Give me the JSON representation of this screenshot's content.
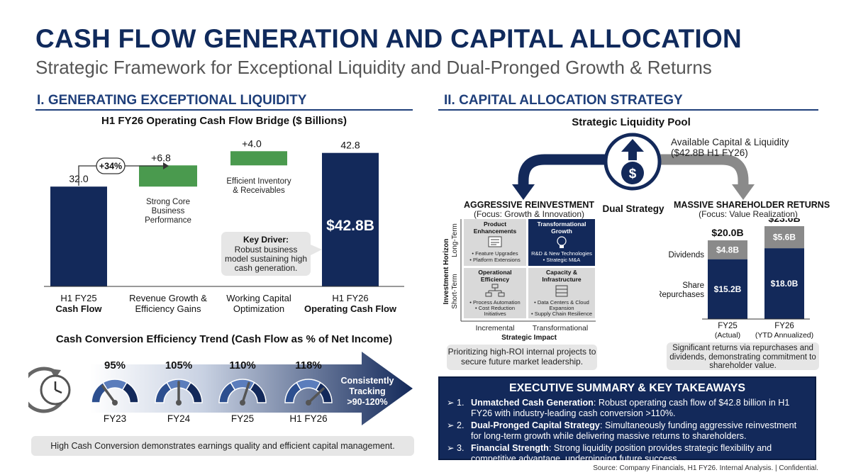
{
  "title": "CASH FLOW GENERATION AND CAPITAL ALLOCATION",
  "subtitle": "Strategic Framework for Exceptional Liquidity and Dual-Pronged Growth & Returns",
  "section1": {
    "heading": "I. GENERATING EXCEPTIONAL LIQUIDITY",
    "bridge_title": "H1 FY26 Operating Cash Flow Bridge ($ Billions)",
    "growth_badge": "+34%",
    "bar_descriptions": [
      "Strong Core Business Performance",
      "Efficient Inventory & Receivables"
    ],
    "highlight_value": "$42.8B",
    "key_driver_title": "Key Driver:",
    "key_driver_text": "Robust business model sustaining high cash generation.",
    "trend_title": "Cash Conversion Efficiency Trend (Cash Flow as % of Net Income)",
    "trend_arrow_text": "Consistently Tracking >90-120%",
    "trend_note": "High Cash Conversion demonstrates earnings quality and efficient capital management."
  },
  "section2": {
    "heading": "II. CAPITAL ALLOCATION STRATEGY",
    "pool_title": "Strategic Liquidity Pool",
    "available_capital": "Available Capital & Liquidity ($42.8B H1 FY26)",
    "dual_strategy": "Dual Strategy",
    "reinvest_title": "AGGRESSIVE REINVESTMENT",
    "reinvest_focus": "(Focus: Growth & Innovation)",
    "returns_title": "MASSIVE SHAREHOLDER RETURNS",
    "returns_focus": "(Focus: Value Realization)",
    "matrix": {
      "y_axis": "Investment Horizon",
      "y_top": "Long-Term",
      "y_bottom": "Short-Term",
      "x_axis": "Strategic Impact",
      "x_left": "Incremental",
      "x_right": "Transformational",
      "cells": [
        {
          "title": "Product Enhancements",
          "bullets": [
            "• Feature Upgrades",
            "• Platform Extensions"
          ]
        },
        {
          "title": "Transformational Growth",
          "bullets": [
            "R&D & New Technologies",
            "• Strategic M&A"
          ]
        },
        {
          "title": "Operational Efficiency",
          "bullets": [
            "• Process Automation",
            "• Cost Reduction Initiatives"
          ]
        },
        {
          "title": "Capacity & Infrastructure",
          "bullets": [
            "• Data Centers & Cloud Expansion",
            "• Supply Chain Resilience"
          ]
        }
      ]
    },
    "reinvest_note": "Prioritizing high-ROI internal projects to secure future market leadership.",
    "returns_note": "Significant returns via repurchases and dividends, demonstrating commitment to shareholder value.",
    "dividends_label": "Dividends",
    "repurchases_label": "Share Repurchases"
  },
  "exec_summary": {
    "title": "EXECUTIVE SUMMARY & KEY TAKEAWAYS",
    "items": [
      {
        "marker": "➢ 1.",
        "bold": "Unmatched Cash Generation",
        "text": ": Robust operating cash flow of $42.8 billion in H1 FY26 with industry-leading cash conversion >110%."
      },
      {
        "marker": "➢ 2.",
        "bold": "Dual-Pronged Capital Strategy",
        "text": ": Simultaneously funding aggressive reinvestment for long-term growth while delivering massive returns to shareholders."
      },
      {
        "marker": "➢ 3.",
        "bold": "Financial Strength",
        "text": ": Strong liquidity position provides strategic flexibility and competitive advantage, underpinning future success."
      }
    ]
  },
  "source": "Source: Company Financials, H1 FY26. Internal Analysis. | Confidential.",
  "colors": {
    "navy": "#13295a",
    "green": "#4a9a4e",
    "gray": "#8a8a8a",
    "heading": "#1f3f7a"
  },
  "chart_data": [
    {
      "type": "bar",
      "subtype": "waterfall",
      "title": "H1 FY26 Operating Cash Flow Bridge ($ Billions)",
      "categories": [
        {
          "line1": "H1 FY25",
          "line2": "Cash Flow"
        },
        {
          "line1": "Revenue Growth &",
          "line2": "Efficiency Gains"
        },
        {
          "line1": "Working Capital",
          "line2": "Optimization"
        },
        {
          "line1": "H1 FY26",
          "line2": "Operating Cash Flow"
        }
      ],
      "steps": [
        {
          "kind": "total",
          "value": 32.0,
          "label": "32.0"
        },
        {
          "kind": "delta",
          "value": 6.8,
          "label": "+6.8"
        },
        {
          "kind": "delta",
          "value": 4.0,
          "label": "+4.0"
        },
        {
          "kind": "total",
          "value": 42.8,
          "label": "42.8"
        }
      ]
    },
    {
      "type": "gauge",
      "title": "Cash Conversion Efficiency Trend (Cash Flow as % of Net Income)",
      "categories": [
        "FY23",
        "FY24",
        "FY25",
        "H1 FY26"
      ],
      "values": [
        95,
        105,
        110,
        118
      ],
      "labels": [
        "95%",
        "105%",
        "110%",
        "118%"
      ]
    },
    {
      "type": "bar",
      "subtype": "stacked",
      "categories": [
        {
          "line1": "FY25",
          "line2": "(Actual)"
        },
        {
          "line1": "FY26",
          "line2": "(YTD Annualized)"
        }
      ],
      "totals": [
        "$20.0B",
        "$23.6B"
      ],
      "series": [
        {
          "name": "Share Repurchases",
          "values": [
            15.2,
            18.0
          ],
          "labels": [
            "$15.2B",
            "$18.0B"
          ]
        },
        {
          "name": "Dividends",
          "values": [
            4.8,
            5.6
          ],
          "labels": [
            "$4.8B",
            "$5.6B"
          ]
        }
      ]
    }
  ]
}
